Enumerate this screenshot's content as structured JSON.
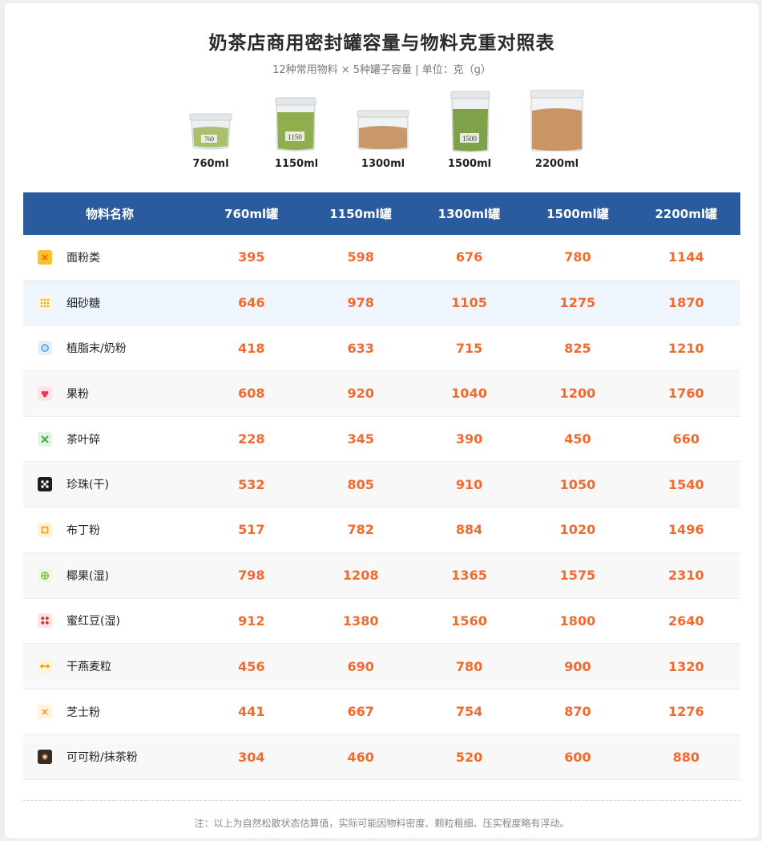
{
  "title": "奶茶店商用密封罐容量与物料克重对照表",
  "subtitle": "12种常用物料 × 5种罐子容量 | 单位：克（g）",
  "jars": [
    {
      "label": "760ml",
      "print": "760",
      "fill": "matcha"
    },
    {
      "label": "1150ml",
      "print": "1150",
      "fill": "matcha"
    },
    {
      "label": "1300ml",
      "print": "",
      "fill": "brown"
    },
    {
      "label": "1500ml",
      "print": "1500",
      "fill": "matcha"
    },
    {
      "label": "2200ml",
      "print": "",
      "fill": "brown"
    }
  ],
  "table": {
    "headers": [
      "物料名称",
      "760ml罐",
      "1150ml罐",
      "1300ml罐",
      "1500ml罐",
      "2200ml罐"
    ],
    "rows": [
      {
        "name": "面粉类",
        "icon": "flour-icon",
        "values": [
          "395",
          "598",
          "676",
          "780",
          "1144"
        ]
      },
      {
        "name": "细砂糖",
        "icon": "sugar-icon",
        "values": [
          "646",
          "978",
          "1105",
          "1275",
          "1870"
        ]
      },
      {
        "name": "植脂末/奶粉",
        "icon": "milk-powder-icon",
        "values": [
          "418",
          "633",
          "715",
          "825",
          "1210"
        ]
      },
      {
        "name": "果粉",
        "icon": "fruit-powder-icon",
        "values": [
          "608",
          "920",
          "1040",
          "1200",
          "1760"
        ]
      },
      {
        "name": "茶叶碎",
        "icon": "tea-leaf-icon",
        "values": [
          "228",
          "345",
          "390",
          "450",
          "660"
        ]
      },
      {
        "name": "珍珠(干)",
        "icon": "pearl-icon",
        "values": [
          "532",
          "805",
          "910",
          "1050",
          "1540"
        ]
      },
      {
        "name": "布丁粉",
        "icon": "pudding-icon",
        "values": [
          "517",
          "782",
          "884",
          "1020",
          "1496"
        ]
      },
      {
        "name": "椰果(湿)",
        "icon": "coconut-icon",
        "values": [
          "798",
          "1208",
          "1365",
          "1575",
          "2310"
        ]
      },
      {
        "name": "蜜红豆(湿)",
        "icon": "red-bean-icon",
        "values": [
          "912",
          "1380",
          "1560",
          "1800",
          "2640"
        ]
      },
      {
        "name": "干燕麦粒",
        "icon": "oat-icon",
        "values": [
          "456",
          "690",
          "780",
          "900",
          "1320"
        ]
      },
      {
        "name": "芝士粉",
        "icon": "cheese-icon",
        "values": [
          "441",
          "667",
          "754",
          "870",
          "1276"
        ]
      },
      {
        "name": "可可粉/抹茶粉",
        "icon": "cocoa-icon",
        "values": [
          "304",
          "460",
          "520",
          "600",
          "880"
        ]
      }
    ]
  },
  "note": "注：以上为自然松散状态估算值，实际可能因物料密度、颗粒粗细、压实程度略有浮动。",
  "colors": {
    "header_bg": "#2b5b9f",
    "value_text": "#f26a2e",
    "highlight_row": "#eef5fd"
  }
}
